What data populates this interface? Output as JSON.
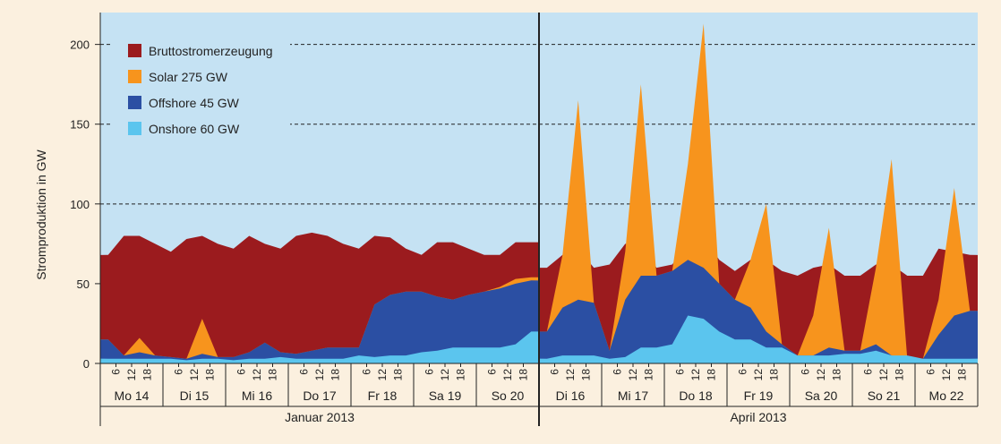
{
  "chart_data": {
    "type": "area",
    "ylabel": "Stromproduktion in GW",
    "ylim": [
      0,
      220
    ],
    "yticks": [
      0,
      50,
      100,
      150,
      200
    ],
    "grid": "dashed horizontal lines at 100, 150, 200",
    "legend_position": "top-left",
    "hour_ticks": [
      "6",
      "12",
      "18"
    ],
    "periods": [
      {
        "label": "Januar 2013",
        "days": [
          "Mo 14",
          "Di 15",
          "Mi 16",
          "Do 17",
          "Fr 18",
          "Sa 19",
          "So 20"
        ]
      },
      {
        "label": "April 2013",
        "days": [
          "Di 16",
          "Mi 17",
          "Do 18",
          "Fr 19",
          "Sa 20",
          "So 21",
          "Mo 22"
        ]
      }
    ],
    "series": [
      {
        "name": "Bruttostromerzeugung",
        "color": "#9b1b1e"
      },
      {
        "name": "Solar 275 GW",
        "color": "#f7941d"
      },
      {
        "name": "Offshore 45 GW",
        "color": "#2b4fa3"
      },
      {
        "name": "Onshore 60 GW",
        "color": "#5bc5ee"
      }
    ],
    "x_unit": "hours since start of period (6-hour steps)",
    "data": {
      "january": {
        "onshore": [
          3,
          3,
          3,
          3,
          3,
          2,
          3,
          3,
          2,
          3,
          3,
          4,
          3,
          3,
          3,
          3,
          5,
          4,
          5,
          5,
          7,
          8,
          10,
          10,
          10,
          10,
          12,
          20
        ],
        "offshore": [
          15,
          5,
          7,
          5,
          4,
          3,
          6,
          4,
          4,
          7,
          13,
          7,
          6,
          8,
          10,
          10,
          10,
          37,
          43,
          45,
          45,
          42,
          40,
          43,
          45,
          47,
          50,
          52
        ],
        "solar": [
          15,
          5,
          16,
          5,
          4,
          3,
          28,
          4,
          4,
          7,
          13,
          7,
          6,
          8,
          10,
          10,
          10,
          37,
          43,
          45,
          45,
          42,
          40,
          43,
          45,
          48,
          53,
          54
        ],
        "total": [
          68,
          80,
          80,
          75,
          70,
          78,
          80,
          75,
          72,
          80,
          75,
          72,
          80,
          82,
          80,
          75,
          72,
          80,
          79,
          72,
          68,
          76,
          76,
          72,
          68,
          68,
          76,
          76
        ]
      },
      "april": {
        "onshore": [
          3,
          5,
          5,
          5,
          3,
          4,
          10,
          10,
          12,
          30,
          28,
          20,
          15,
          15,
          10,
          10,
          5,
          5,
          5,
          6,
          6,
          8,
          5,
          5,
          3,
          3,
          3,
          3
        ],
        "offshore": [
          20,
          35,
          40,
          38,
          8,
          40,
          55,
          55,
          58,
          65,
          60,
          50,
          40,
          35,
          20,
          12,
          5,
          5,
          10,
          8,
          8,
          12,
          5,
          3,
          3,
          18,
          30,
          33
        ],
        "solar": [
          20,
          68,
          165,
          38,
          8,
          70,
          175,
          55,
          58,
          125,
          213,
          50,
          40,
          65,
          100,
          12,
          5,
          30,
          85,
          8,
          8,
          60,
          128,
          3,
          3,
          40,
          110,
          33
        ],
        "total": [
          60,
          68,
          72,
          60,
          62,
          75,
          75,
          60,
          62,
          75,
          80,
          65,
          58,
          65,
          65,
          58,
          55,
          60,
          62,
          55,
          55,
          62,
          62,
          55,
          55,
          72,
          70,
          68
        ]
      }
    }
  }
}
